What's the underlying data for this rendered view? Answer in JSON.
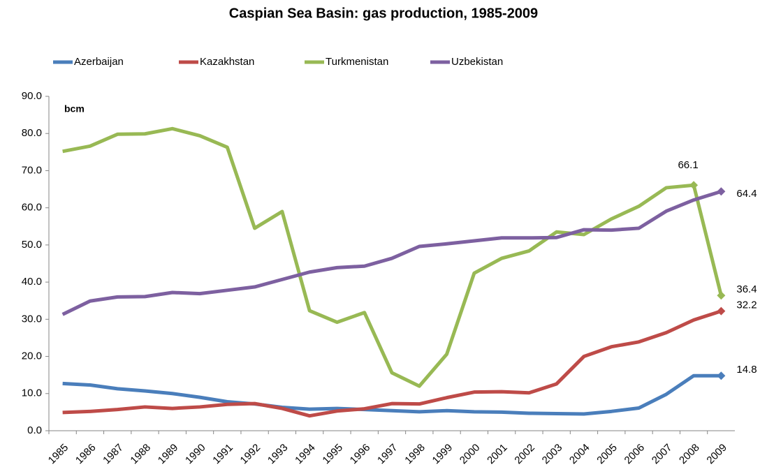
{
  "chart_data": {
    "type": "line",
    "title": "Caspian Sea Basin: gas production, 1985-2009",
    "y_label": "bcm",
    "categories": [
      "1985",
      "1986",
      "1987",
      "1988",
      "1989",
      "1990",
      "1991",
      "1992",
      "1993",
      "1994",
      "1995",
      "1996",
      "1997",
      "1998",
      "1999",
      "2000",
      "2001",
      "2002",
      "2003",
      "2004",
      "2005",
      "2006",
      "2007",
      "2008",
      "2009"
    ],
    "ylim": [
      0,
      90
    ],
    "yticks": [
      {
        "value": 0,
        "label": "0.0"
      },
      {
        "value": 10,
        "label": "10.0"
      },
      {
        "value": 20,
        "label": "20.0"
      },
      {
        "value": 30,
        "label": "30.0"
      },
      {
        "value": 40,
        "label": "40.0"
      },
      {
        "value": 50,
        "label": "50.0"
      },
      {
        "value": 60,
        "label": "60.0"
      },
      {
        "value": 70,
        "label": "70.0"
      },
      {
        "value": 80,
        "label": "80.0"
      },
      {
        "value": 90,
        "label": "90.0"
      }
    ],
    "legend": "top",
    "series": [
      {
        "name": "Azerbaijan",
        "color": "#4a7ebb",
        "values": [
          12.7,
          12.3,
          11.3,
          10.7,
          10.0,
          9.0,
          7.8,
          7.2,
          6.3,
          5.8,
          6.0,
          5.7,
          5.4,
          5.1,
          5.4,
          5.1,
          5.0,
          4.7,
          4.6,
          4.5,
          5.2,
          6.1,
          9.8,
          14.8,
          14.8
        ],
        "value_labels": [
          null,
          null,
          null,
          null,
          null,
          null,
          null,
          null,
          null,
          null,
          null,
          null,
          null,
          null,
          null,
          null,
          null,
          null,
          null,
          null,
          null,
          null,
          null,
          null,
          "14.8"
        ]
      },
      {
        "name": "Kazakhstan",
        "color": "#be4b48",
        "values": [
          4.9,
          5.2,
          5.7,
          6.4,
          6.0,
          6.4,
          7.1,
          7.3,
          6.0,
          4.0,
          5.3,
          5.9,
          7.3,
          7.2,
          8.9,
          10.4,
          10.5,
          10.2,
          12.6,
          20.0,
          22.6,
          23.9,
          26.4,
          29.8,
          32.2
        ],
        "value_labels": [
          null,
          null,
          null,
          null,
          null,
          null,
          null,
          null,
          null,
          null,
          null,
          null,
          null,
          null,
          null,
          null,
          null,
          null,
          null,
          null,
          null,
          null,
          null,
          null,
          "32.2"
        ]
      },
      {
        "name": "Turkmenistan",
        "color": "#98b954",
        "values": [
          75.2,
          76.6,
          79.8,
          79.9,
          81.3,
          79.4,
          76.3,
          54.5,
          59.0,
          32.3,
          29.2,
          31.8,
          15.6,
          12.0,
          20.6,
          42.4,
          46.4,
          48.4,
          53.5,
          52.8,
          57.0,
          60.4,
          65.4,
          66.1,
          36.4
        ],
        "value_labels": [
          null,
          null,
          null,
          null,
          null,
          null,
          null,
          null,
          null,
          null,
          null,
          null,
          null,
          null,
          null,
          null,
          null,
          null,
          null,
          null,
          null,
          null,
          null,
          "66.1",
          "36.4"
        ]
      },
      {
        "name": "Uzbekistan",
        "color": "#7d60a0",
        "values": [
          31.3,
          34.9,
          36.0,
          36.1,
          37.2,
          36.9,
          37.8,
          38.7,
          40.7,
          42.7,
          43.9,
          44.3,
          46.4,
          49.6,
          50.3,
          51.1,
          51.9,
          51.9,
          52.0,
          54.1,
          54.0,
          54.5,
          59.1,
          62.1,
          64.4
        ],
        "value_labels": [
          null,
          null,
          null,
          null,
          null,
          null,
          null,
          null,
          null,
          null,
          null,
          null,
          null,
          null,
          null,
          null,
          null,
          null,
          null,
          null,
          null,
          null,
          null,
          null,
          "64.4"
        ]
      }
    ]
  }
}
